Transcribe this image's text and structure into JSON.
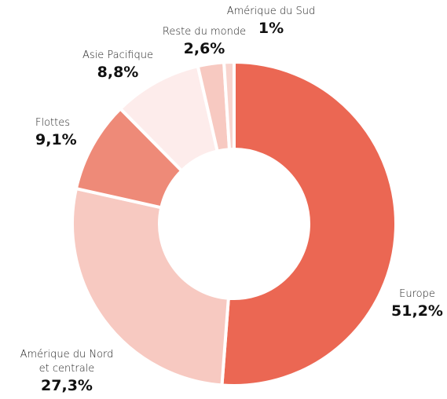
{
  "chart_data": {
    "type": "donut",
    "categories": [
      "Europe",
      "Amérique du Nord et centrale",
      "Flottes",
      "Asie Pacifique",
      "Reste du monde",
      "Amérique du Sud"
    ],
    "values": [
      51.2,
      27.3,
      9.1,
      8.8,
      2.6,
      1
    ],
    "value_labels": [
      "51,2%",
      "27,3%",
      "9,1%",
      "8,8%",
      "2,6%",
      "1%"
    ],
    "colors": [
      "#eb6753",
      "#f7c9c1",
      "#ee8a78",
      "#fdeceb",
      "#f7c9c1",
      "#f8d4ce"
    ]
  }
}
